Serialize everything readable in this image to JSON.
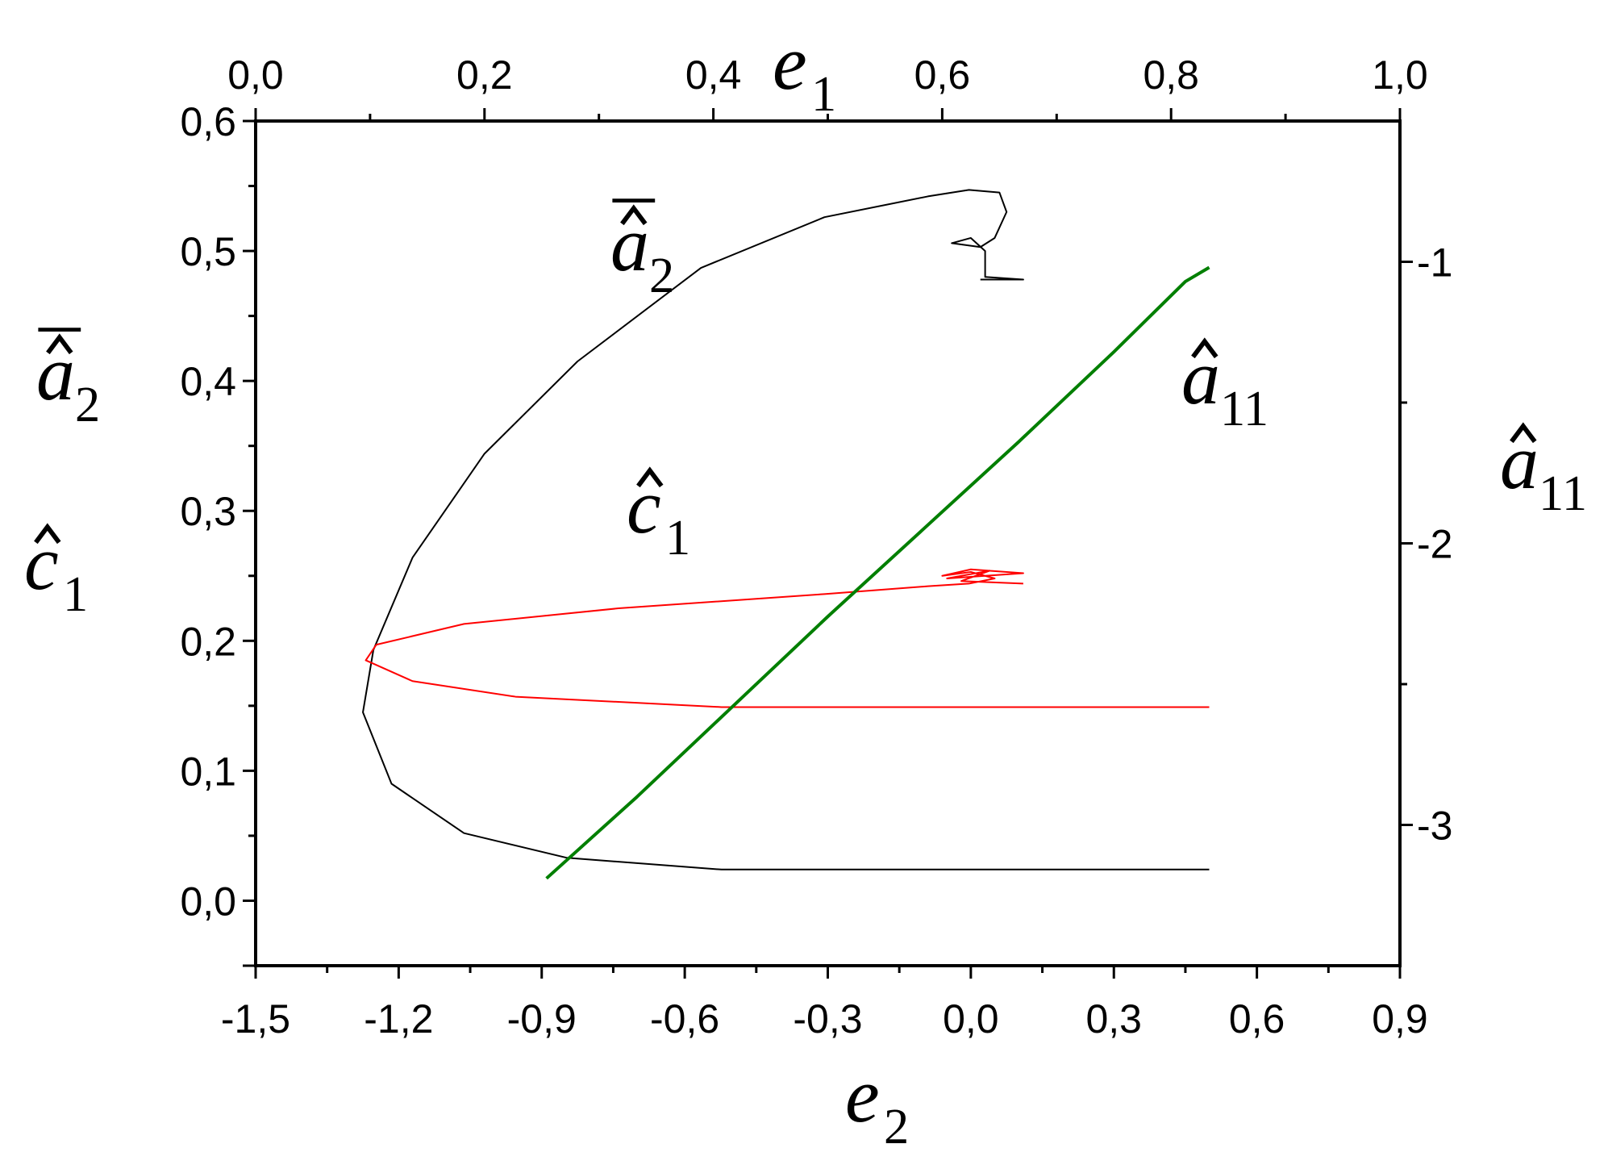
{
  "chart_data": {
    "type": "line",
    "axes": {
      "bottom": {
        "label": {
          "base": "e",
          "sub": "2"
        },
        "range": [
          -1.5,
          0.9
        ],
        "ticks": [
          -1.5,
          -1.2,
          -0.9,
          -0.6,
          -0.3,
          0.0,
          0.3,
          0.6,
          0.9
        ],
        "tick_labels": [
          "-1,5",
          "-1,2",
          "-0,9",
          "-0,6",
          "-0,3",
          "0,0",
          "0,3",
          "0,6",
          "0,9"
        ]
      },
      "top": {
        "label": {
          "base": "e",
          "sub": "1"
        },
        "range": [
          0,
          1
        ],
        "ticks": [
          0,
          0.2,
          0.4,
          0.6,
          0.8,
          1.0
        ],
        "tick_labels": [
          "0,0",
          "0,2",
          "0,4",
          "0,6",
          "0,8",
          "1,0"
        ]
      },
      "left": {
        "labels": [
          {
            "base": "a",
            "sub": "2",
            "hat": true,
            "bar": true
          },
          {
            "base": "c",
            "sub": "1",
            "hat": true
          }
        ],
        "range": [
          -0.05,
          0.6
        ],
        "ticks": [
          0,
          0.1,
          0.2,
          0.3,
          0.4,
          0.5,
          0.6
        ],
        "tick_labels": [
          "0,0",
          "0,1",
          "0,2",
          "0,3",
          "0,4",
          "0,5",
          "0,6"
        ]
      },
      "right": {
        "label": {
          "base": "a",
          "sub": "11",
          "hat": true
        },
        "range": [
          -3.5,
          -0.5
        ],
        "ticks": [
          -1,
          -2,
          -3
        ],
        "tick_labels": [
          "-1",
          "-2",
          "-3"
        ]
      }
    },
    "series": [
      {
        "name": "a2 bar hat",
        "color": "#000000",
        "axis": "left",
        "x": [
          0.5,
          -0.523,
          -0.847,
          -1.063,
          -1.215,
          -1.275,
          -1.253,
          -1.171,
          -1.02,
          -0.825,
          -0.566,
          -0.307,
          -0.09,
          -0.004,
          0.06,
          0.075,
          0.05,
          0.02,
          -0.04,
          0.0,
          0.03,
          0.03,
          0.11,
          0.02
        ],
        "y": [
          0.024,
          0.024,
          0.033,
          0.052,
          0.09,
          0.145,
          0.193,
          0.264,
          0.344,
          0.415,
          0.487,
          0.526,
          0.542,
          0.547,
          0.545,
          0.53,
          0.51,
          0.503,
          0.506,
          0.51,
          0.5,
          0.48,
          0.478,
          0.478
        ]
      },
      {
        "name": "c1 hat",
        "color": "#ff0000",
        "axis": "left",
        "x": [
          0.5,
          -0.523,
          -0.955,
          -1.171,
          -1.269,
          -1.247,
          -1.063,
          -0.739,
          -0.307,
          -0.09,
          -0.004,
          0.05,
          0.0,
          -0.06,
          0.0,
          0.11,
          -0.05,
          0.04,
          -0.02,
          0.11
        ],
        "y": [
          0.149,
          0.149,
          0.157,
          0.169,
          0.185,
          0.197,
          0.213,
          0.225,
          0.236,
          0.242,
          0.244,
          0.248,
          0.253,
          0.25,
          0.255,
          0.252,
          0.248,
          0.254,
          0.246,
          0.244
        ]
      },
      {
        "name": "a11 hat",
        "color": "#007f00",
        "axis": "right",
        "x": [
          -0.89,
          -0.7,
          -0.5,
          -0.3,
          -0.1,
          0.1,
          0.3,
          0.45,
          0.5
        ],
        "y": [
          -3.19,
          -2.9,
          -2.58,
          -2.26,
          -1.95,
          -1.64,
          -1.32,
          -1.07,
          -1.02
        ]
      }
    ],
    "annotations": [
      {
        "base": "a",
        "sub": "2",
        "hat": true,
        "bar": true,
        "near": "black curve"
      },
      {
        "base": "c",
        "sub": "1",
        "hat": true,
        "near": "red curve"
      },
      {
        "base": "a",
        "sub": "11",
        "hat": true,
        "near": "green curve"
      }
    ]
  }
}
